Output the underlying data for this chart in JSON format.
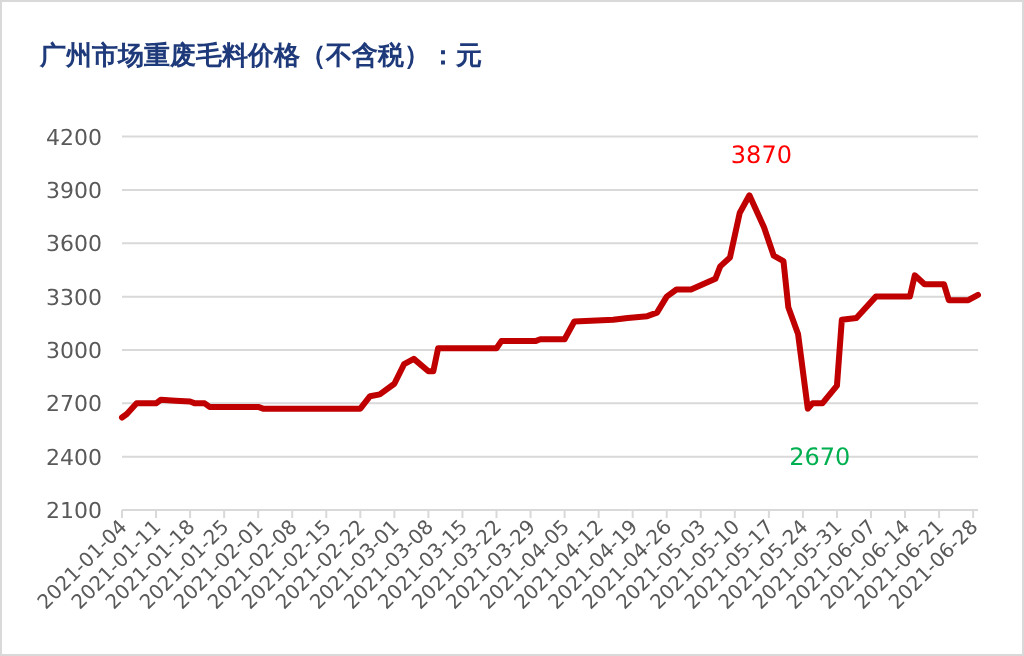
{
  "chart_data": {
    "type": "line",
    "title": "广州市场重废毛料价格（不含税）：元",
    "x": [
      "2021-01-04",
      "2021-01-05",
      "2021-01-07",
      "2021-01-11",
      "2021-01-12",
      "2021-01-15",
      "2021-01-18",
      "2021-01-19",
      "2021-01-21",
      "2021-01-22",
      "2021-02-01",
      "2021-02-02",
      "2021-02-22",
      "2021-02-24",
      "2021-02-26",
      "2021-03-01",
      "2021-03-03",
      "2021-03-05",
      "2021-03-08",
      "2021-03-09",
      "2021-03-10",
      "2021-03-22",
      "2021-03-23",
      "2021-03-30",
      "2021-03-31",
      "2021-04-05",
      "2021-04-07",
      "2021-04-15",
      "2021-04-18",
      "2021-04-22",
      "2021-04-24",
      "2021-04-26",
      "2021-04-28",
      "2021-05-01",
      "2021-05-06",
      "2021-05-07",
      "2021-05-09",
      "2021-05-11",
      "2021-05-13",
      "2021-05-16",
      "2021-05-18",
      "2021-05-20",
      "2021-05-21",
      "2021-05-23",
      "2021-05-25",
      "2021-05-26",
      "2021-05-28",
      "2021-05-31",
      "2021-06-01",
      "2021-06-04",
      "2021-06-08",
      "2021-06-15",
      "2021-06-16",
      "2021-06-18",
      "2021-06-22",
      "2021-06-23",
      "2021-06-27",
      "2021-06-29"
    ],
    "series": [
      {
        "color": "#c00000",
        "values": [
          2620,
          2640,
          2700,
          2700,
          2720,
          2715,
          2710,
          2700,
          2700,
          2680,
          2680,
          2670,
          2670,
          2740,
          2750,
          2810,
          2920,
          2950,
          2880,
          2880,
          3010,
          3010,
          3050,
          3050,
          3060,
          3060,
          3160,
          3170,
          3180,
          3190,
          3210,
          3300,
          3340,
          3340,
          3400,
          3470,
          3520,
          3770,
          3870,
          3690,
          3530,
          3500,
          3240,
          3090,
          2670,
          2700,
          2700,
          2800,
          3170,
          3180,
          3300,
          3300,
          3420,
          3370,
          3370,
          3280,
          3280,
          3310
        ]
      }
    ],
    "xlim": [
      "2021-01-04",
      "2021-06-29"
    ],
    "xticks": [
      "2021-01-04",
      "2021-01-11",
      "2021-01-18",
      "2021-01-25",
      "2021-02-01",
      "2021-02-08",
      "2021-02-15",
      "2021-02-22",
      "2021-03-01",
      "2021-03-08",
      "2021-03-15",
      "2021-03-22",
      "2021-03-29",
      "2021-04-05",
      "2021-04-12",
      "2021-04-19",
      "2021-04-26",
      "2021-05-03",
      "2021-05-10",
      "2021-05-17",
      "2021-05-24",
      "2021-05-31",
      "2021-06-07",
      "2021-06-14",
      "2021-06-21",
      "2021-06-28"
    ],
    "ylim": [
      2100,
      4200
    ],
    "yticks": [
      2100,
      2400,
      2700,
      3000,
      3300,
      3600,
      3900,
      4200
    ],
    "grid": "y",
    "marker": "none",
    "line_style": "solid",
    "annotations": [
      {
        "text": "3870",
        "x": "2021-05-13",
        "y": 3870
      },
      {
        "text": "2670",
        "x": "2021-05-25",
        "y": 2670
      }
    ]
  }
}
